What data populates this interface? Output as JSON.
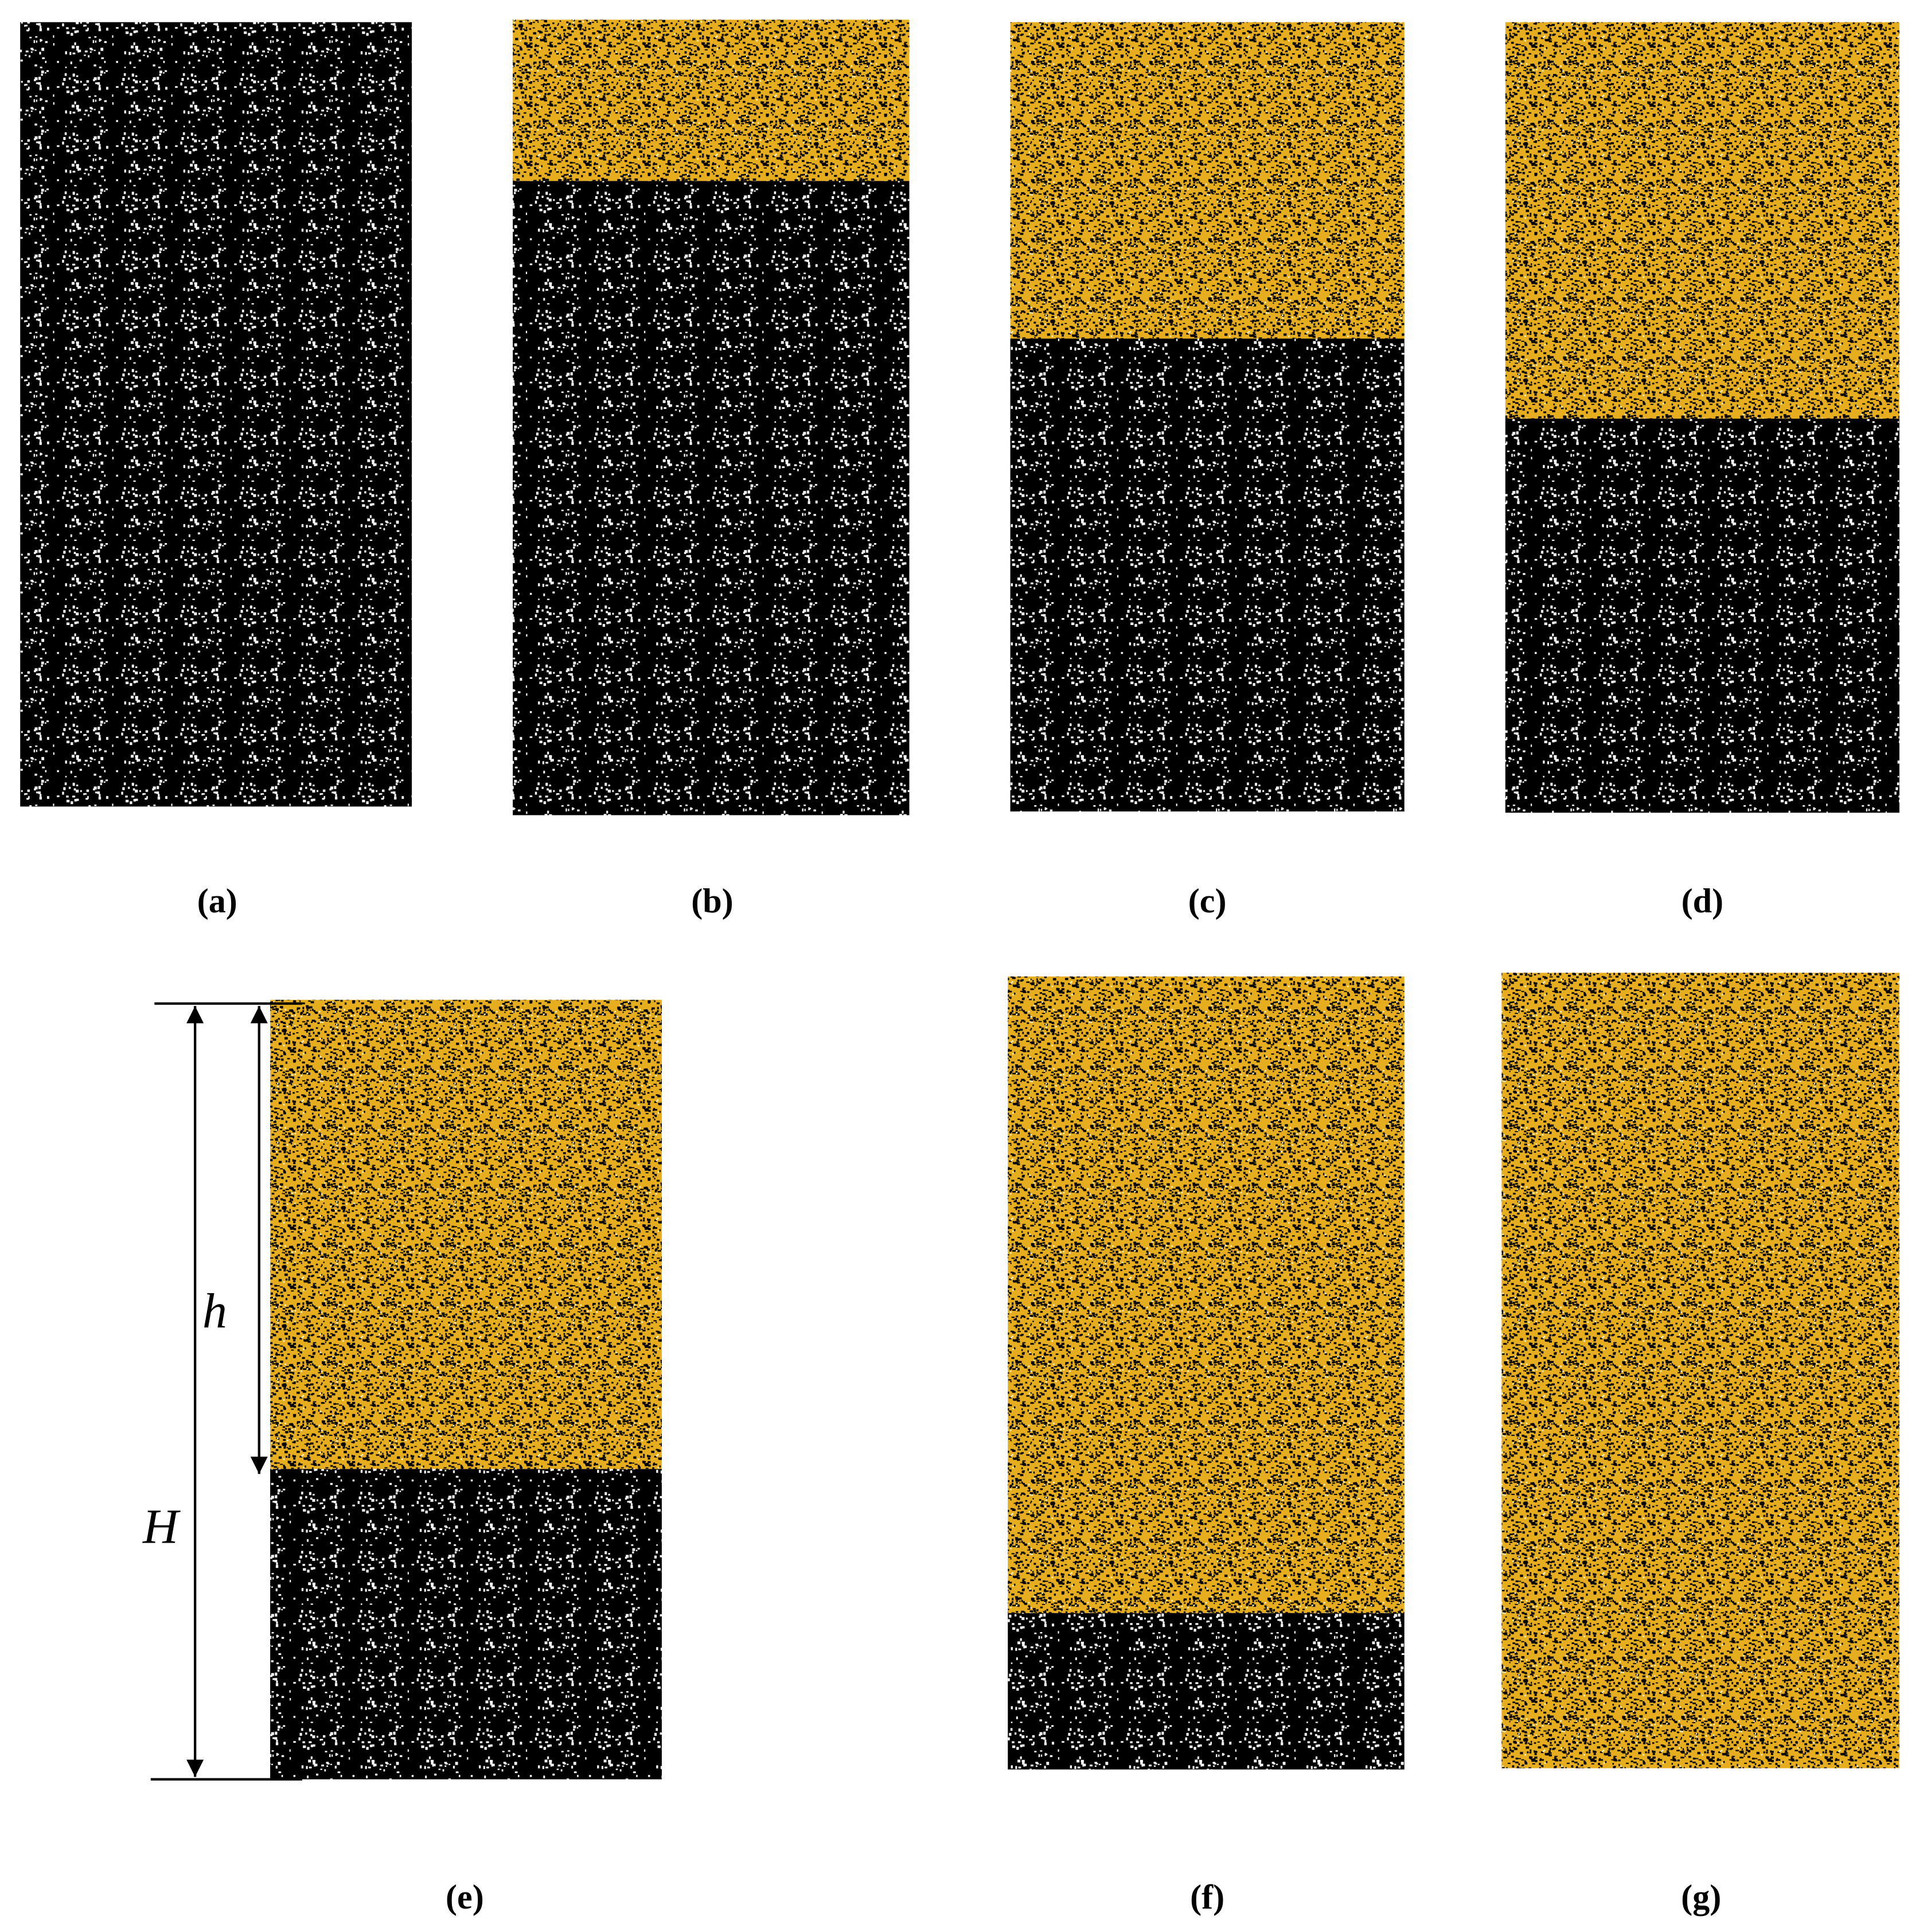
{
  "panels": [
    {
      "label": "(a)"
    },
    {
      "label": "(b)"
    },
    {
      "label": "(c)"
    },
    {
      "label": "(d)"
    },
    {
      "label": "(e)"
    },
    {
      "label": "(f)"
    },
    {
      "label": "(g)"
    }
  ],
  "annotations": {
    "small_height": "h",
    "total_height": "H"
  }
}
